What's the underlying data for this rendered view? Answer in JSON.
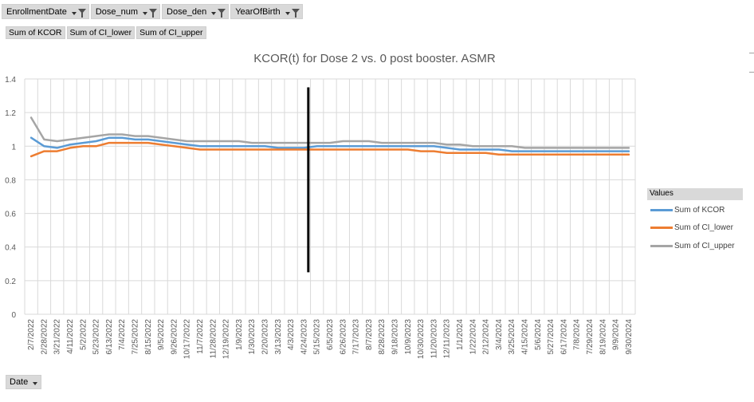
{
  "filters": [
    {
      "label": "EnrollmentDate"
    },
    {
      "label": "Dose_num"
    },
    {
      "label": "Dose_den"
    },
    {
      "label": "YearOfBirth"
    }
  ],
  "value_fields": [
    "Sum of KCOR",
    "Sum of CI_lower",
    "Sum of CI_upper"
  ],
  "axis_field": "Date",
  "colors": {
    "kcor": "#5b9bd5",
    "ci_lower": "#ed7d31",
    "ci_upper": "#a5a5a5",
    "marker": "#000000"
  },
  "chart_data": {
    "type": "line",
    "title": "KCOR(t) for Dose 2 vs. 0 post booster. ASMR",
    "xlabel": "",
    "ylabel": "",
    "ylim": [
      0,
      1.4
    ],
    "yticks": [
      "0",
      "0.2",
      "0.4",
      "0.6",
      "0.8",
      "1",
      "1.2",
      "1.4"
    ],
    "grid": true,
    "legend_title": "Values",
    "legend_position": "right",
    "x_tick_labels": [
      "2/7/2022",
      "2/28/2022",
      "3/21/2022",
      "4/11/2022",
      "5/2/2022",
      "5/23/2022",
      "6/13/2022",
      "7/4/2022",
      "7/25/2022",
      "8/15/2022",
      "9/5/2022",
      "9/26/2022",
      "10/17/2022",
      "11/7/2022",
      "11/28/2022",
      "12/19/2022",
      "1/9/2023",
      "1/30/2023",
      "2/20/2023",
      "3/13/2023",
      "4/3/2023",
      "4/24/2023",
      "5/15/2023",
      "6/5/2023",
      "6/26/2023",
      "7/17/2023",
      "8/7/2023",
      "8/28/2023",
      "9/18/2023",
      "10/9/2023",
      "10/30/2023",
      "11/20/2023",
      "12/11/2023",
      "1/1/2024",
      "1/22/2024",
      "2/12/2024",
      "3/4/2024",
      "3/25/2024",
      "4/15/2024",
      "5/6/2024",
      "5/27/2024",
      "6/17/2024",
      "7/8/2024",
      "7/29/2024",
      "8/19/2024",
      "9/9/2024",
      "9/30/2024"
    ],
    "vertical_marker": {
      "x": "5/1/2023",
      "y_from": 0.25,
      "y_to": 1.35
    },
    "series": [
      {
        "name": "Sum of KCOR",
        "key": "kcor",
        "values": [
          1.05,
          1.0,
          0.99,
          1.01,
          1.02,
          1.03,
          1.05,
          1.05,
          1.04,
          1.04,
          1.03,
          1.02,
          1.01,
          1.0,
          1.0,
          1.0,
          1.0,
          1.0,
          1.0,
          0.99,
          0.99,
          0.99,
          1.0,
          1.0,
          1.0,
          1.0,
          1.0,
          1.0,
          1.0,
          1.0,
          1.0,
          1.0,
          0.99,
          0.98,
          0.98,
          0.98,
          0.98,
          0.97,
          0.97,
          0.97,
          0.97,
          0.97,
          0.97,
          0.97,
          0.97,
          0.97,
          0.97
        ]
      },
      {
        "name": "Sum of CI_lower",
        "key": "ci_lower",
        "values": [
          0.94,
          0.97,
          0.97,
          0.99,
          1.0,
          1.0,
          1.02,
          1.02,
          1.02,
          1.02,
          1.01,
          1.0,
          0.99,
          0.98,
          0.98,
          0.98,
          0.98,
          0.98,
          0.98,
          0.98,
          0.98,
          0.98,
          0.98,
          0.98,
          0.98,
          0.98,
          0.98,
          0.98,
          0.98,
          0.98,
          0.97,
          0.97,
          0.96,
          0.96,
          0.96,
          0.96,
          0.95,
          0.95,
          0.95,
          0.95,
          0.95,
          0.95,
          0.95,
          0.95,
          0.95,
          0.95,
          0.95
        ]
      },
      {
        "name": "Sum of CI_upper",
        "key": "ci_upper",
        "values": [
          1.17,
          1.04,
          1.03,
          1.04,
          1.05,
          1.06,
          1.07,
          1.07,
          1.06,
          1.06,
          1.05,
          1.04,
          1.03,
          1.03,
          1.03,
          1.03,
          1.03,
          1.02,
          1.02,
          1.02,
          1.02,
          1.02,
          1.02,
          1.02,
          1.03,
          1.03,
          1.03,
          1.02,
          1.02,
          1.02,
          1.02,
          1.02,
          1.01,
          1.01,
          1.0,
          1.0,
          1.0,
          1.0,
          0.99,
          0.99,
          0.99,
          0.99,
          0.99,
          0.99,
          0.99,
          0.99,
          0.99
        ]
      }
    ]
  }
}
